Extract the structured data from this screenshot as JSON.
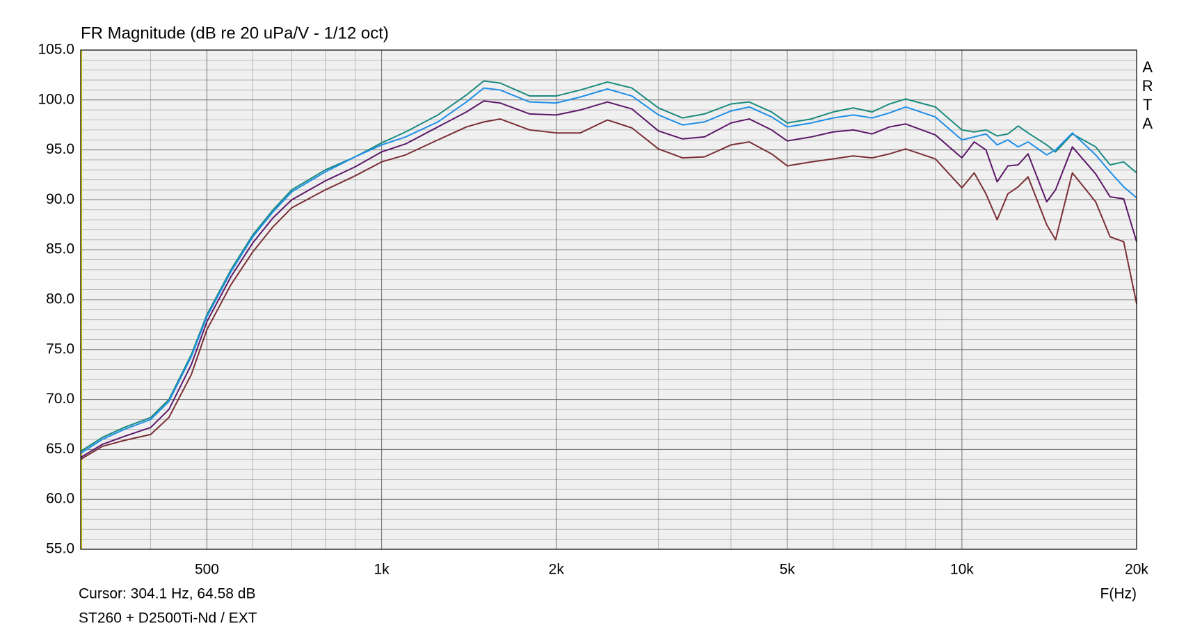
{
  "chart_data": {
    "type": "line",
    "title": "FR Magnitude (dB re 20 uPa/V - 1/12 oct)",
    "x_label": "F(Hz)",
    "cursor_text": "Cursor: 304.1 Hz, 64.58 dB",
    "cursor_x": 304.1,
    "subtitle": "ST260 + D2500Ti-Nd / EXT",
    "watermark": "ARTA",
    "xscale": "log",
    "grid": true,
    "xlim": [
      303,
      20000
    ],
    "ylim": [
      55,
      105
    ],
    "xticks": [
      500,
      {
        "value": 1000,
        "label": "1k"
      },
      {
        "value": 2000,
        "label": "2k"
      },
      {
        "value": 5000,
        "label": "5k"
      },
      {
        "value": 10000,
        "label": "10k"
      },
      {
        "value": 20000,
        "label": "20k"
      }
    ],
    "x_minor_ticks": [
      400,
      600,
      700,
      800,
      900,
      3000,
      4000,
      6000,
      7000,
      8000,
      9000
    ],
    "yticks": [
      {
        "value": 55,
        "label": "55.0"
      },
      {
        "value": 60,
        "label": "60.0"
      },
      {
        "value": 65,
        "label": "65.0"
      },
      {
        "value": 70,
        "label": "70.0"
      },
      {
        "value": 75,
        "label": "75.0"
      },
      {
        "value": 80,
        "label": "80.0"
      },
      {
        "value": 85,
        "label": "85.0"
      },
      {
        "value": 90,
        "label": "90.0"
      },
      {
        "value": 95,
        "label": "95.0"
      },
      {
        "value": 100,
        "label": "100.0"
      },
      {
        "value": 105,
        "label": "105.0"
      }
    ],
    "y_minor_ticks": [
      56,
      57,
      58,
      59,
      61,
      62,
      63,
      64,
      66,
      67,
      68,
      69,
      71,
      72,
      73,
      74,
      76,
      77,
      78,
      79,
      81,
      82,
      83,
      84,
      86,
      87,
      88,
      89,
      91,
      92,
      93,
      94,
      96,
      97,
      98,
      99,
      101,
      102,
      103,
      104
    ],
    "x": [
      303,
      330,
      360,
      400,
      430,
      470,
      500,
      550,
      600,
      650,
      700,
      800,
      900,
      1000,
      1100,
      1250,
      1400,
      1500,
      1600,
      1800,
      2000,
      2200,
      2450,
      2700,
      3000,
      3300,
      3600,
      4000,
      4300,
      4700,
      5000,
      5500,
      6000,
      6500,
      7000,
      7500,
      8000,
      9000,
      10000,
      10500,
      11000,
      11500,
      12000,
      12500,
      13000,
      14000,
      14500,
      15500,
      17000,
      18000,
      19000,
      20000
    ],
    "series": [
      {
        "color": "#1a8a7e",
        "values": [
          64.8,
          66.2,
          67.2,
          68.2,
          70,
          74.5,
          78.5,
          83,
          86.5,
          89,
          91,
          93,
          94.3,
          95.7,
          96.8,
          98.5,
          100.5,
          101.9,
          101.7,
          100.4,
          100.4,
          101,
          101.8,
          101.2,
          99.2,
          98.2,
          98.6,
          99.6,
          99.8,
          98.8,
          97.7,
          98.1,
          98.8,
          99.2,
          98.8,
          99.6,
          100.1,
          99.3,
          97,
          96.8,
          97,
          96.4,
          96.6,
          97.4,
          96.7,
          95.5,
          94.8,
          96.6,
          95.3,
          93.5,
          93.8,
          92.7
        ]
      },
      {
        "color": "#1e8ee8",
        "values": [
          64.6,
          66,
          67,
          68,
          69.8,
          74.3,
          78.3,
          82.8,
          86.3,
          88.8,
          90.8,
          92.8,
          94.3,
          95.5,
          96.3,
          97.8,
          99.8,
          101.2,
          101,
          99.8,
          99.7,
          100.3,
          101.1,
          100.4,
          98.5,
          97.5,
          97.8,
          98.9,
          99.3,
          98.3,
          97.3,
          97.7,
          98.2,
          98.5,
          98.2,
          98.7,
          99.3,
          98.3,
          96,
          96.3,
          96.6,
          95.5,
          96,
          95.3,
          95.8,
          94.5,
          95,
          96.7,
          94.5,
          92.8,
          91.3,
          90.2
        ]
      },
      {
        "color": "#5c1868",
        "values": [
          64.2,
          65.5,
          66.3,
          67.2,
          69,
          73.5,
          77.8,
          82.3,
          85.7,
          88.2,
          90,
          91.9,
          93.3,
          94.8,
          95.6,
          97.3,
          98.8,
          99.9,
          99.7,
          98.6,
          98.5,
          99,
          99.8,
          99.1,
          96.9,
          96.1,
          96.3,
          97.7,
          98.1,
          97,
          95.9,
          96.3,
          96.8,
          97,
          96.6,
          97.3,
          97.6,
          96.5,
          94.2,
          95.8,
          95,
          91.8,
          93.4,
          93.5,
          94.6,
          89.8,
          91,
          95.3,
          92.6,
          90.3,
          90.1,
          85.8
        ]
      },
      {
        "color": "#7a2e34",
        "values": [
          64,
          65.3,
          65.9,
          66.5,
          68.2,
          72.5,
          77,
          81.5,
          84.8,
          87.3,
          89.2,
          91,
          92.4,
          93.8,
          94.5,
          96,
          97.3,
          97.8,
          98.1,
          97,
          96.7,
          96.7,
          98,
          97.2,
          95.1,
          94.2,
          94.3,
          95.5,
          95.8,
          94.6,
          93.4,
          93.8,
          94.1,
          94.4,
          94.2,
          94.6,
          95.1,
          94.1,
          91.2,
          92.7,
          90.6,
          88,
          90.6,
          91.3,
          92.3,
          87.5,
          86,
          92.7,
          89.8,
          86.3,
          85.8,
          79.6
        ]
      }
    ]
  }
}
